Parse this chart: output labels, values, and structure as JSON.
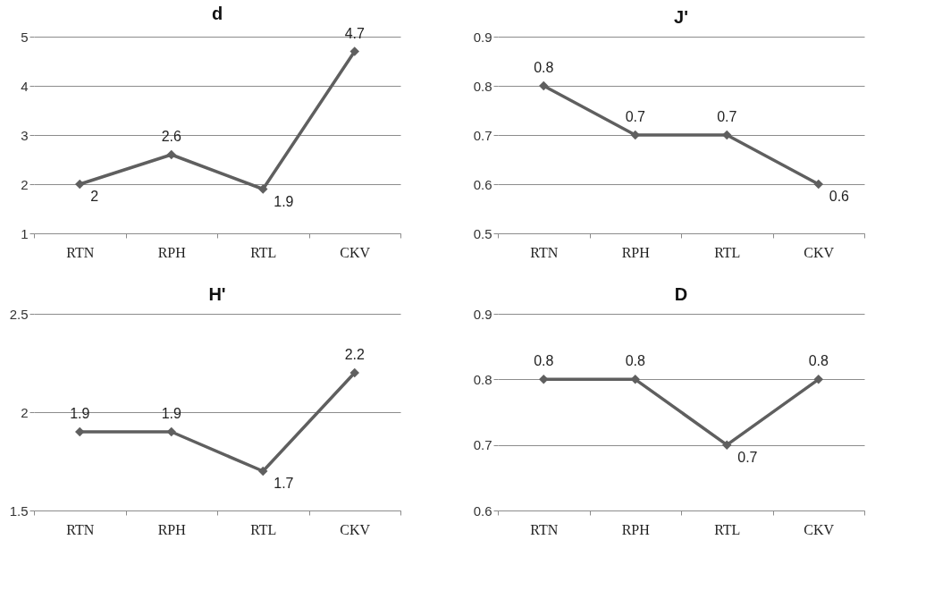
{
  "chart_data": [
    {
      "type": "line",
      "title": "d",
      "categories": [
        "RTN",
        "RPH",
        "RTL",
        "CKV"
      ],
      "series": [
        {
          "color": "#5f5f5f",
          "values": [
            2,
            2.6,
            1.9,
            4.7
          ]
        }
      ],
      "ylim": [
        1,
        5
      ],
      "yticks": [
        1,
        2,
        3,
        4,
        5
      ],
      "grid": "y",
      "marker": "diamond",
      "data_labels": true
    },
    {
      "type": "line",
      "title": "J'",
      "categories": [
        "RTN",
        "RPH",
        "RTL",
        "CKV"
      ],
      "series": [
        {
          "color": "#5f5f5f",
          "values": [
            0.8,
            0.7,
            0.7,
            0.6
          ]
        }
      ],
      "ylim": [
        0.5,
        0.9
      ],
      "yticks": [
        0.5,
        0.6,
        0.7,
        0.8,
        0.9
      ],
      "grid": "y",
      "marker": "diamond",
      "data_labels": true
    },
    {
      "type": "line",
      "title": "H'",
      "categories": [
        "RTN",
        "RPH",
        "RTL",
        "CKV"
      ],
      "series": [
        {
          "color": "#5f5f5f",
          "values": [
            1.9,
            1.9,
            1.7,
            2.2
          ]
        }
      ],
      "ylim": [
        1.5,
        2.5
      ],
      "yticks": [
        1.5,
        {
          "value": 2,
          "label": "2"
        },
        2.5
      ],
      "grid": "y",
      "marker": "diamond",
      "data_labels": true
    },
    {
      "type": "line",
      "title": "D",
      "categories": [
        "RTN",
        "RPH",
        "RTL",
        "CKV"
      ],
      "series": [
        {
          "color": "#5f5f5f",
          "values": [
            0.8,
            0.8,
            0.7,
            0.8
          ]
        }
      ],
      "ylim": [
        0.6,
        0.9
      ],
      "yticks": [
        0.6,
        0.7,
        0.8,
        0.9
      ],
      "grid": "y",
      "marker": "diamond",
      "data_labels": true
    }
  ]
}
